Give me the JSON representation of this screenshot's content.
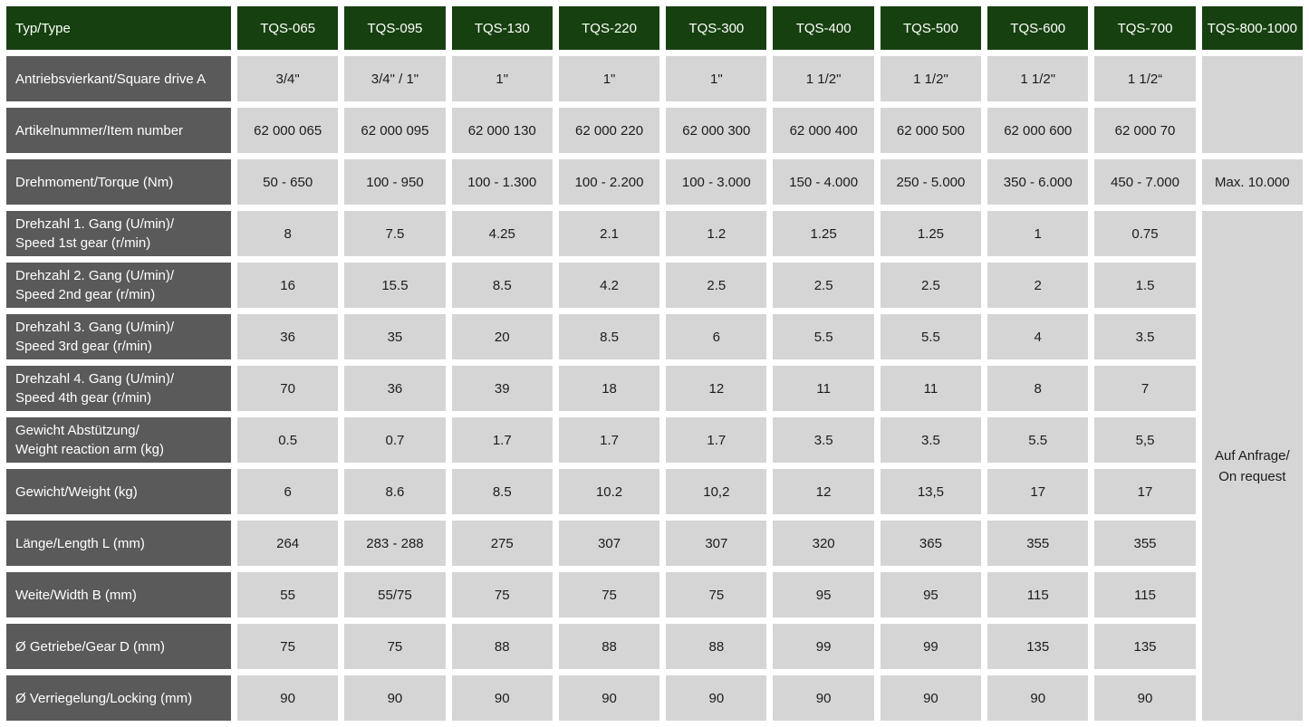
{
  "table": {
    "corner_label": "Typ/Type",
    "columns": [
      "TQS-065",
      "TQS-095",
      "TQS-130",
      "TQS-220",
      "TQS-300",
      "TQS-400",
      "TQS-500",
      "TQS-600",
      "TQS-700",
      "TQS-800-1000"
    ],
    "rows": [
      {
        "id": "square-drive",
        "label_lines": [
          "Antriebsvierkant/Square drive  A"
        ],
        "values": [
          "3/4\"",
          "3/4\" / 1\"",
          "1\"",
          "1\"",
          "1\"",
          "1 1/2\"",
          "1 1/2\"",
          "1 1/2\"",
          "1 1/2“"
        ]
      },
      {
        "id": "item-number",
        "label_lines": [
          "Artikelnummer/Item number"
        ],
        "values": [
          "62 000 065",
          "62 000 095",
          "62 000 130",
          "62 000 220",
          "62 000 300",
          "62 000 400",
          "62 000 500",
          "62 000 600",
          "62 000 70"
        ]
      },
      {
        "id": "torque",
        "label_lines": [
          "Drehmoment/Torque (Nm)"
        ],
        "values": [
          "50 - 650",
          "100 - 950",
          "100 - 1.300",
          "100 - 2.200",
          "100 - 3.000",
          "150 - 4.000",
          "250 - 5.000",
          "350 - 6.000",
          "450 - 7.000"
        ]
      },
      {
        "id": "speed-1st-gear",
        "label_lines": [
          "Drehzahl 1. Gang (U/min)/",
          "Speed 1st gear (r/min)"
        ],
        "values": [
          "8",
          "7.5",
          "4.25",
          "2.1",
          "1.2",
          "1.25",
          "1.25",
          "1",
          "0.75"
        ]
      },
      {
        "id": "speed-2nd-gear",
        "label_lines": [
          "Drehzahl 2. Gang (U/min)/",
          "Speed 2nd gear (r/min)"
        ],
        "values": [
          "16",
          "15.5",
          "8.5",
          "4.2",
          "2.5",
          "2.5",
          "2.5",
          "2",
          "1.5"
        ]
      },
      {
        "id": "speed-3rd-gear",
        "label_lines": [
          "Drehzahl 3. Gang (U/min)/",
          "Speed 3rd gear (r/min)"
        ],
        "values": [
          "36",
          "35",
          "20",
          "8.5",
          "6",
          "5.5",
          "5.5",
          "4",
          "3.5"
        ]
      },
      {
        "id": "speed-4th-gear",
        "label_lines": [
          "Drehzahl 4. Gang (U/min)/",
          "Speed 4th gear (r/min)"
        ],
        "values": [
          "70",
          "36",
          "39",
          "18",
          "12",
          "11",
          "11",
          "8",
          "7"
        ]
      },
      {
        "id": "weight-reaction-arm",
        "label_lines": [
          "Gewicht Abstützung/",
          "Weight reaction arm (kg)"
        ],
        "values": [
          "0.5",
          "0.7",
          "1.7",
          "1.7",
          "1.7",
          "3.5",
          "3.5",
          "5.5",
          "5,5"
        ]
      },
      {
        "id": "weight",
        "label_lines": [
          "Gewicht/Weight (kg)"
        ],
        "values": [
          "6",
          "8.6",
          "8.5",
          "10.2",
          "10,2",
          "12",
          "13,5",
          "17",
          "17"
        ]
      },
      {
        "id": "length",
        "label_lines": [
          "Länge/Length L (mm)"
        ],
        "values": [
          "264",
          "283 - 288",
          "275",
          "307",
          "307",
          "320",
          "365",
          "355",
          "355"
        ]
      },
      {
        "id": "width",
        "label_lines": [
          "Weite/Width B (mm)"
        ],
        "values": [
          "55",
          "55/75",
          "75",
          "75",
          "75",
          "95",
          "95",
          "115",
          "115"
        ]
      },
      {
        "id": "gear-diameter",
        "label_lines": [
          "Ø Getriebe/Gear D (mm)"
        ],
        "values": [
          "75",
          "75",
          "88",
          "88",
          "88",
          "99",
          "99",
          "135",
          "135"
        ]
      },
      {
        "id": "locking-diameter",
        "label_lines": [
          "Ø Verriegelung/Locking (mm)"
        ],
        "values": [
          "90",
          "90",
          "90",
          "90",
          "90",
          "90",
          "90",
          "90",
          "90"
        ]
      }
    ],
    "last_column": {
      "blank_rowspan": 2,
      "torque_value": "Max. 10.000",
      "note_lines": [
        "Auf Anfrage/",
        "On request"
      ],
      "note_rowspan": 10
    }
  },
  "colors": {
    "header_green": "#174010",
    "label_gray": "#5a5a5a",
    "cell_gray": "#d5d5d5",
    "gap_white": "#ffffff",
    "header_text": "#ffffff",
    "cell_text": "#1c1c1c"
  }
}
